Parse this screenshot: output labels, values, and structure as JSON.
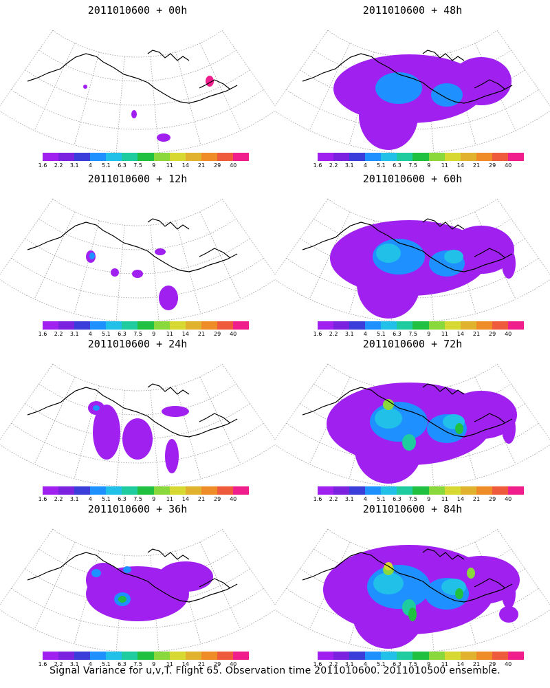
{
  "panels": [
    {
      "title": "2011010600 + 00h",
      "level": 0
    },
    {
      "title": "2011010600 + 48h",
      "level": 4
    },
    {
      "title": "2011010600 + 12h",
      "level": 1
    },
    {
      "title": "2011010600 + 60h",
      "level": 5
    },
    {
      "title": "2011010600 + 24h",
      "level": 2
    },
    {
      "title": "2011010600 + 72h",
      "level": 6
    },
    {
      "title": "2011010600 + 36h",
      "level": 3
    },
    {
      "title": "2011010600 + 84h",
      "level": 7
    }
  ],
  "colorbar": {
    "labels": [
      "1.6",
      "2.2",
      "3.1",
      "4",
      "5.1",
      "6.3",
      "7.5",
      "9",
      "11",
      "14",
      "21",
      "29",
      "40"
    ],
    "colors": [
      "#a020f0",
      "#7b22e0",
      "#3b3ddb",
      "#1f90ff",
      "#20c0e8",
      "#1fcca0",
      "#20c040",
      "#8ad83c",
      "#d8d832",
      "#e0b22e",
      "#f08c28",
      "#f05a3c",
      "#f01e8c"
    ]
  },
  "caption": "Signal Variance for u,v,T. Flight 65. Observation time 2011010600. 2011010500 ensemble."
}
